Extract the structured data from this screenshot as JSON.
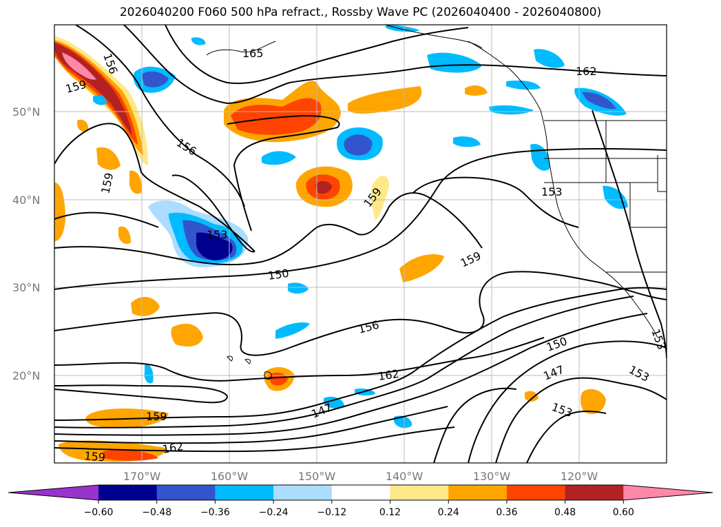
{
  "title": "2026040200 F060 500 hPa refract., Rossby Wave PC (2026040400 - 2026040800)",
  "lat_labels": [
    "50°N",
    "40°N",
    "30°N",
    "20°N"
  ],
  "lon_labels": [
    "170°W",
    "160°W",
    "150°W",
    "140°W",
    "130°W",
    "120°W"
  ],
  "contour_labels": [
    "156",
    "165",
    "162",
    "159",
    "156",
    "159",
    "153",
    "159",
    "153",
    "159",
    "150",
    "156",
    "162",
    "147",
    "159",
    "162",
    "159",
    "150",
    "147",
    "153",
    "153",
    "153"
  ],
  "colorbar": {
    "ticks": [
      "−0.60",
      "−0.48",
      "−0.36",
      "−0.24",
      "−0.12",
      "0.12",
      "0.24",
      "0.36",
      "0.48",
      "0.60"
    ],
    "colors": [
      "#9933cc",
      "#000090",
      "#3355cc",
      "#00bbff",
      "#aaddff",
      "#ffffff",
      "#ffe888",
      "#ffa500",
      "#ff4400",
      "#b22222",
      "#ff88aa"
    ]
  },
  "colors": {
    "coast": "#000000",
    "grid": "#bbbbbb",
    "contour": "#000000"
  }
}
